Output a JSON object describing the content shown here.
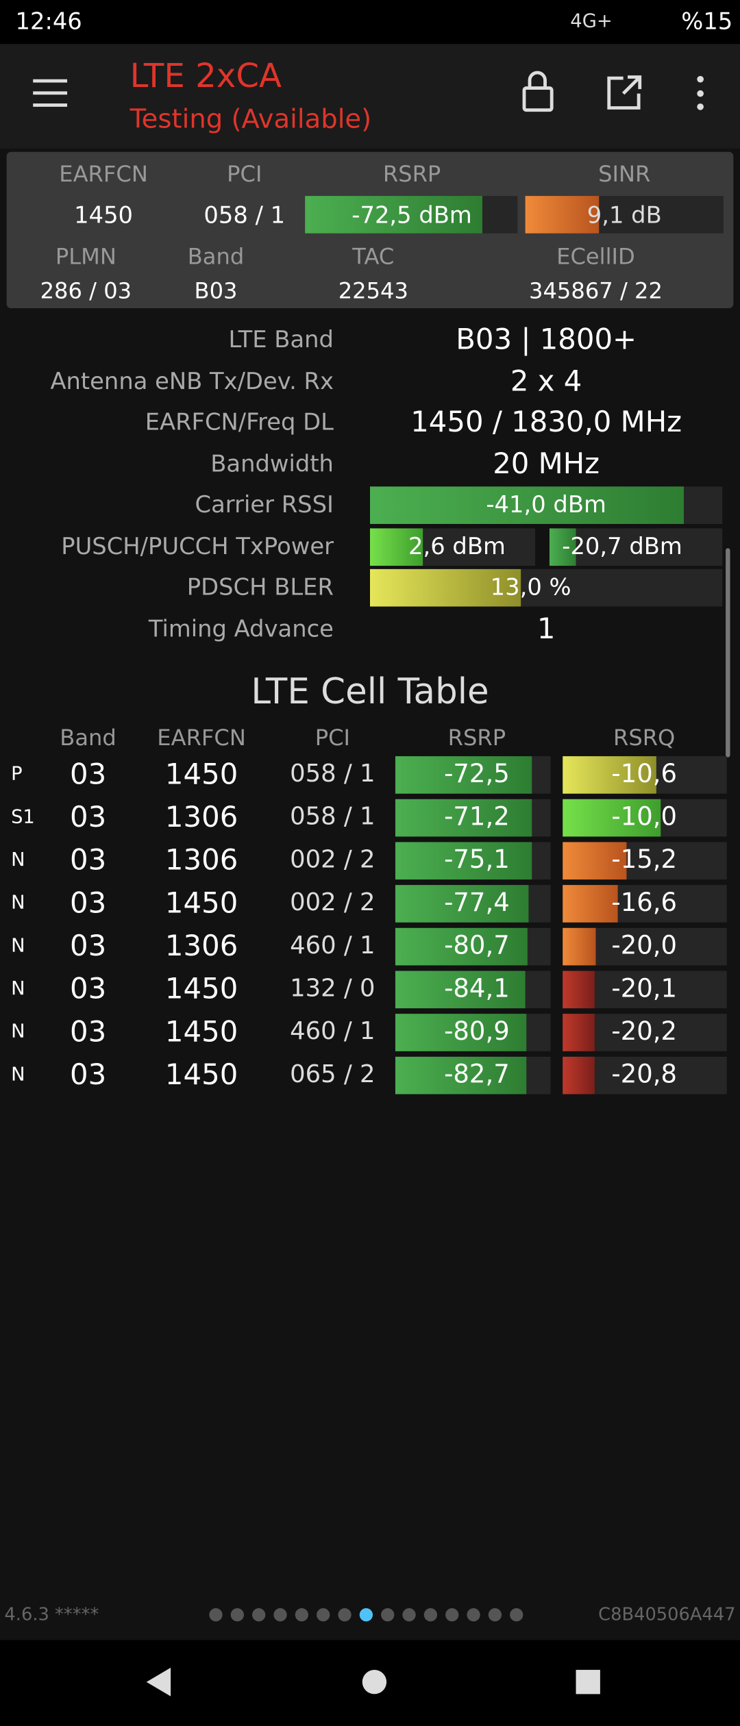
{
  "status_bar": {
    "time": "12:46",
    "network": "4G+",
    "battery": "%15"
  },
  "header": {
    "title": "LTE 2xCA",
    "subtitle": "Testing (Available)"
  },
  "summary": {
    "headers": [
      "EARFCN",
      "PCI",
      "RSRP",
      "SINR"
    ],
    "values": [
      "1450",
      "058 / 1",
      "-72,5 dBm",
      "9,1 dB"
    ],
    "headers2": [
      "PLMN",
      "Band",
      "TAC",
      "ECellID"
    ],
    "values2": [
      "286 / 03",
      "B03",
      "22543",
      "345867 / 22"
    ]
  },
  "details": [
    {
      "label": "LTE Band",
      "values": [
        "B03 | 1800+"
      ]
    },
    {
      "label": "Antenna eNB Tx/Dev. Rx",
      "values": [
        "2 x 4"
      ]
    },
    {
      "label": "EARFCN/Freq DL",
      "values": [
        "1450 / 1830,0 MHz"
      ]
    },
    {
      "label": "Bandwidth",
      "values": [
        "20 MHz"
      ]
    },
    {
      "label": "Carrier RSSI",
      "values": [
        "-41,0 dBm"
      ]
    },
    {
      "label": "PUSCH/PUCCH TxPower",
      "values": [
        "2,6 dBm",
        "-20,7 dBm"
      ]
    },
    {
      "label": "PDSCH BLER",
      "values": [
        "13,0 %"
      ]
    },
    {
      "label": "Timing Advance",
      "values": [
        "1"
      ]
    }
  ],
  "cell_table": {
    "title": "LTE Cell Table",
    "columns": [
      "Band",
      "EARFCN",
      "PCI",
      "RSRP",
      "RSRQ"
    ],
    "rows": [
      [
        "P",
        "03",
        "1450",
        "058 / 1",
        "-72,5",
        "-10,6"
      ],
      [
        "S1",
        "03",
        "1306",
        "058 / 1",
        "-71,2",
        "-10,0"
      ],
      [
        "N",
        "03",
        "1306",
        "002 / 2",
        "-75,1",
        "-15,2"
      ],
      [
        "N",
        "03",
        "1450",
        "002 / 2",
        "-77,4",
        "-16,6"
      ],
      [
        "N",
        "03",
        "1306",
        "460 / 1",
        "-80,7",
        "-20,0"
      ],
      [
        "N",
        "03",
        "1450",
        "132 / 0",
        "-84,1",
        "-20,1"
      ],
      [
        "N",
        "03",
        "1450",
        "460 / 1",
        "-80,9",
        "-20,2"
      ],
      [
        "N",
        "03",
        "1450",
        "065 / 2",
        "-82,7",
        "-20,8"
      ]
    ]
  },
  "footer": {
    "version": "4.6.3 *****",
    "device_id": "C8B40506A447"
  }
}
